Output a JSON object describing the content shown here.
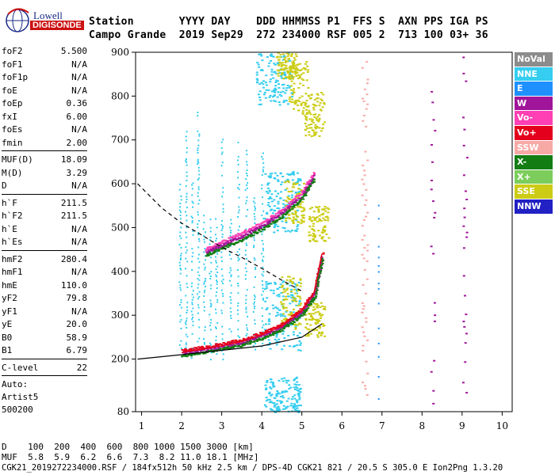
{
  "logo": {
    "line1": "Lowell",
    "line2": "DIGISONDE"
  },
  "header": {
    "row1": "Station       YYYY DAY    DDD HHMMSS P1  FFS S  AXN PPS IGA PS",
    "row2": "Campo Grande  2019 Sep29  272 234000 RSF 005 2  713 100 03+ 36"
  },
  "params": [
    {
      "k": "foF2",
      "v": "5.500"
    },
    {
      "k": "foF1",
      "v": "N/A"
    },
    {
      "k": "foF1p",
      "v": "N/A"
    },
    {
      "k": "foE",
      "v": "N/A"
    },
    {
      "k": "foEp",
      "v": "0.36"
    },
    {
      "k": "fxI",
      "v": "6.00"
    },
    {
      "k": "foEs",
      "v": "N/A"
    },
    {
      "k": "fmin",
      "v": "2.00"
    },
    {
      "k": "MUF(D)",
      "v": "18.09"
    },
    {
      "k": "M(D)",
      "v": "3.29"
    },
    {
      "k": "D",
      "v": "N/A"
    },
    {
      "k": "h`F",
      "v": "211.5"
    },
    {
      "k": "h`F2",
      "v": "211.5"
    },
    {
      "k": "h`E",
      "v": "N/A"
    },
    {
      "k": "h`Es",
      "v": "N/A"
    },
    {
      "k": "hmF2",
      "v": "280.4"
    },
    {
      "k": "hmF1",
      "v": "N/A"
    },
    {
      "k": "hmE",
      "v": "110.0"
    },
    {
      "k": "yF2",
      "v": "79.8"
    },
    {
      "k": "yF1",
      "v": "N/A"
    },
    {
      "k": "yE",
      "v": "20.0"
    },
    {
      "k": "B0",
      "v": "58.9"
    },
    {
      "k": "B1",
      "v": "6.79"
    },
    {
      "k": "C-level",
      "v": "22"
    }
  ],
  "auto_lines": [
    "Auto:",
    "Artist5",
    "500200"
  ],
  "legend": [
    {
      "label": "NoVal",
      "color": "#8c8c8c"
    },
    {
      "label": "NNE",
      "color": "#35cdf0"
    },
    {
      "label": "E",
      "color": "#1e90ff"
    },
    {
      "label": "W",
      "color": "#a0159a"
    },
    {
      "label": "Vo-",
      "color": "#ff3fb4"
    },
    {
      "label": "Vo+",
      "color": "#e4001c"
    },
    {
      "label": "SSW",
      "color": "#f7a9a6"
    },
    {
      "label": "X-",
      "color": "#137d13"
    },
    {
      "label": "X+",
      "color": "#7ccd5b"
    },
    {
      "label": "SSE",
      "color": "#cccc16"
    },
    {
      "label": "NNW",
      "color": "#2121c4"
    }
  ],
  "footer": {
    "line1": "D    100  200  400  600  800 1000 1500 3000 [km]",
    "line2": "MUF  5.8  5.9  6.2  6.6  7.3  8.2 11.0 18.1 [MHz]",
    "line3": "CGK21_2019272234000.RSF / 184fx512h 50 kHz 2.5 km / DPS-4D CGK21 821 / 20.5 S 305.0 E Ion2Png 1.3.20"
  },
  "chart_data": {
    "type": "scatter",
    "x_ticks": [
      "1",
      "2",
      "3",
      "4",
      "5",
      "6",
      "7",
      "8",
      "9",
      "10"
    ],
    "y_ticks": [
      "80",
      "200",
      "300",
      "400",
      "500",
      "600",
      "700",
      "800",
      "900"
    ],
    "xlim": [
      0.85,
      10.25
    ],
    "ylim": [
      80,
      900
    ],
    "trace_virtual_height": {
      "freq": [
        2.0,
        2.5,
        3.0,
        3.5,
        4.0,
        4.5,
        5.0,
        5.3,
        5.5
      ],
      "height": [
        215,
        222,
        230,
        240,
        255,
        275,
        310,
        350,
        440
      ]
    },
    "trace_2hop": {
      "freq": [
        2.6,
        3.0,
        3.5,
        4.0,
        4.5,
        5.0,
        5.3
      ],
      "height": [
        445,
        462,
        482,
        505,
        535,
        575,
        620
      ]
    },
    "profile_solid": {
      "freq": [
        0.9,
        2.0,
        3.0,
        4.0,
        5.0,
        5.5
      ],
      "height": [
        200,
        210,
        220,
        230,
        250,
        280
      ]
    },
    "profile_dashed": {
      "freq": [
        0.9,
        1.5,
        2.0,
        2.5,
        3.0,
        3.5,
        4.0,
        4.5,
        5.0
      ],
      "height": [
        600,
        545,
        510,
        483,
        455,
        432,
        407,
        380,
        355
      ]
    }
  }
}
